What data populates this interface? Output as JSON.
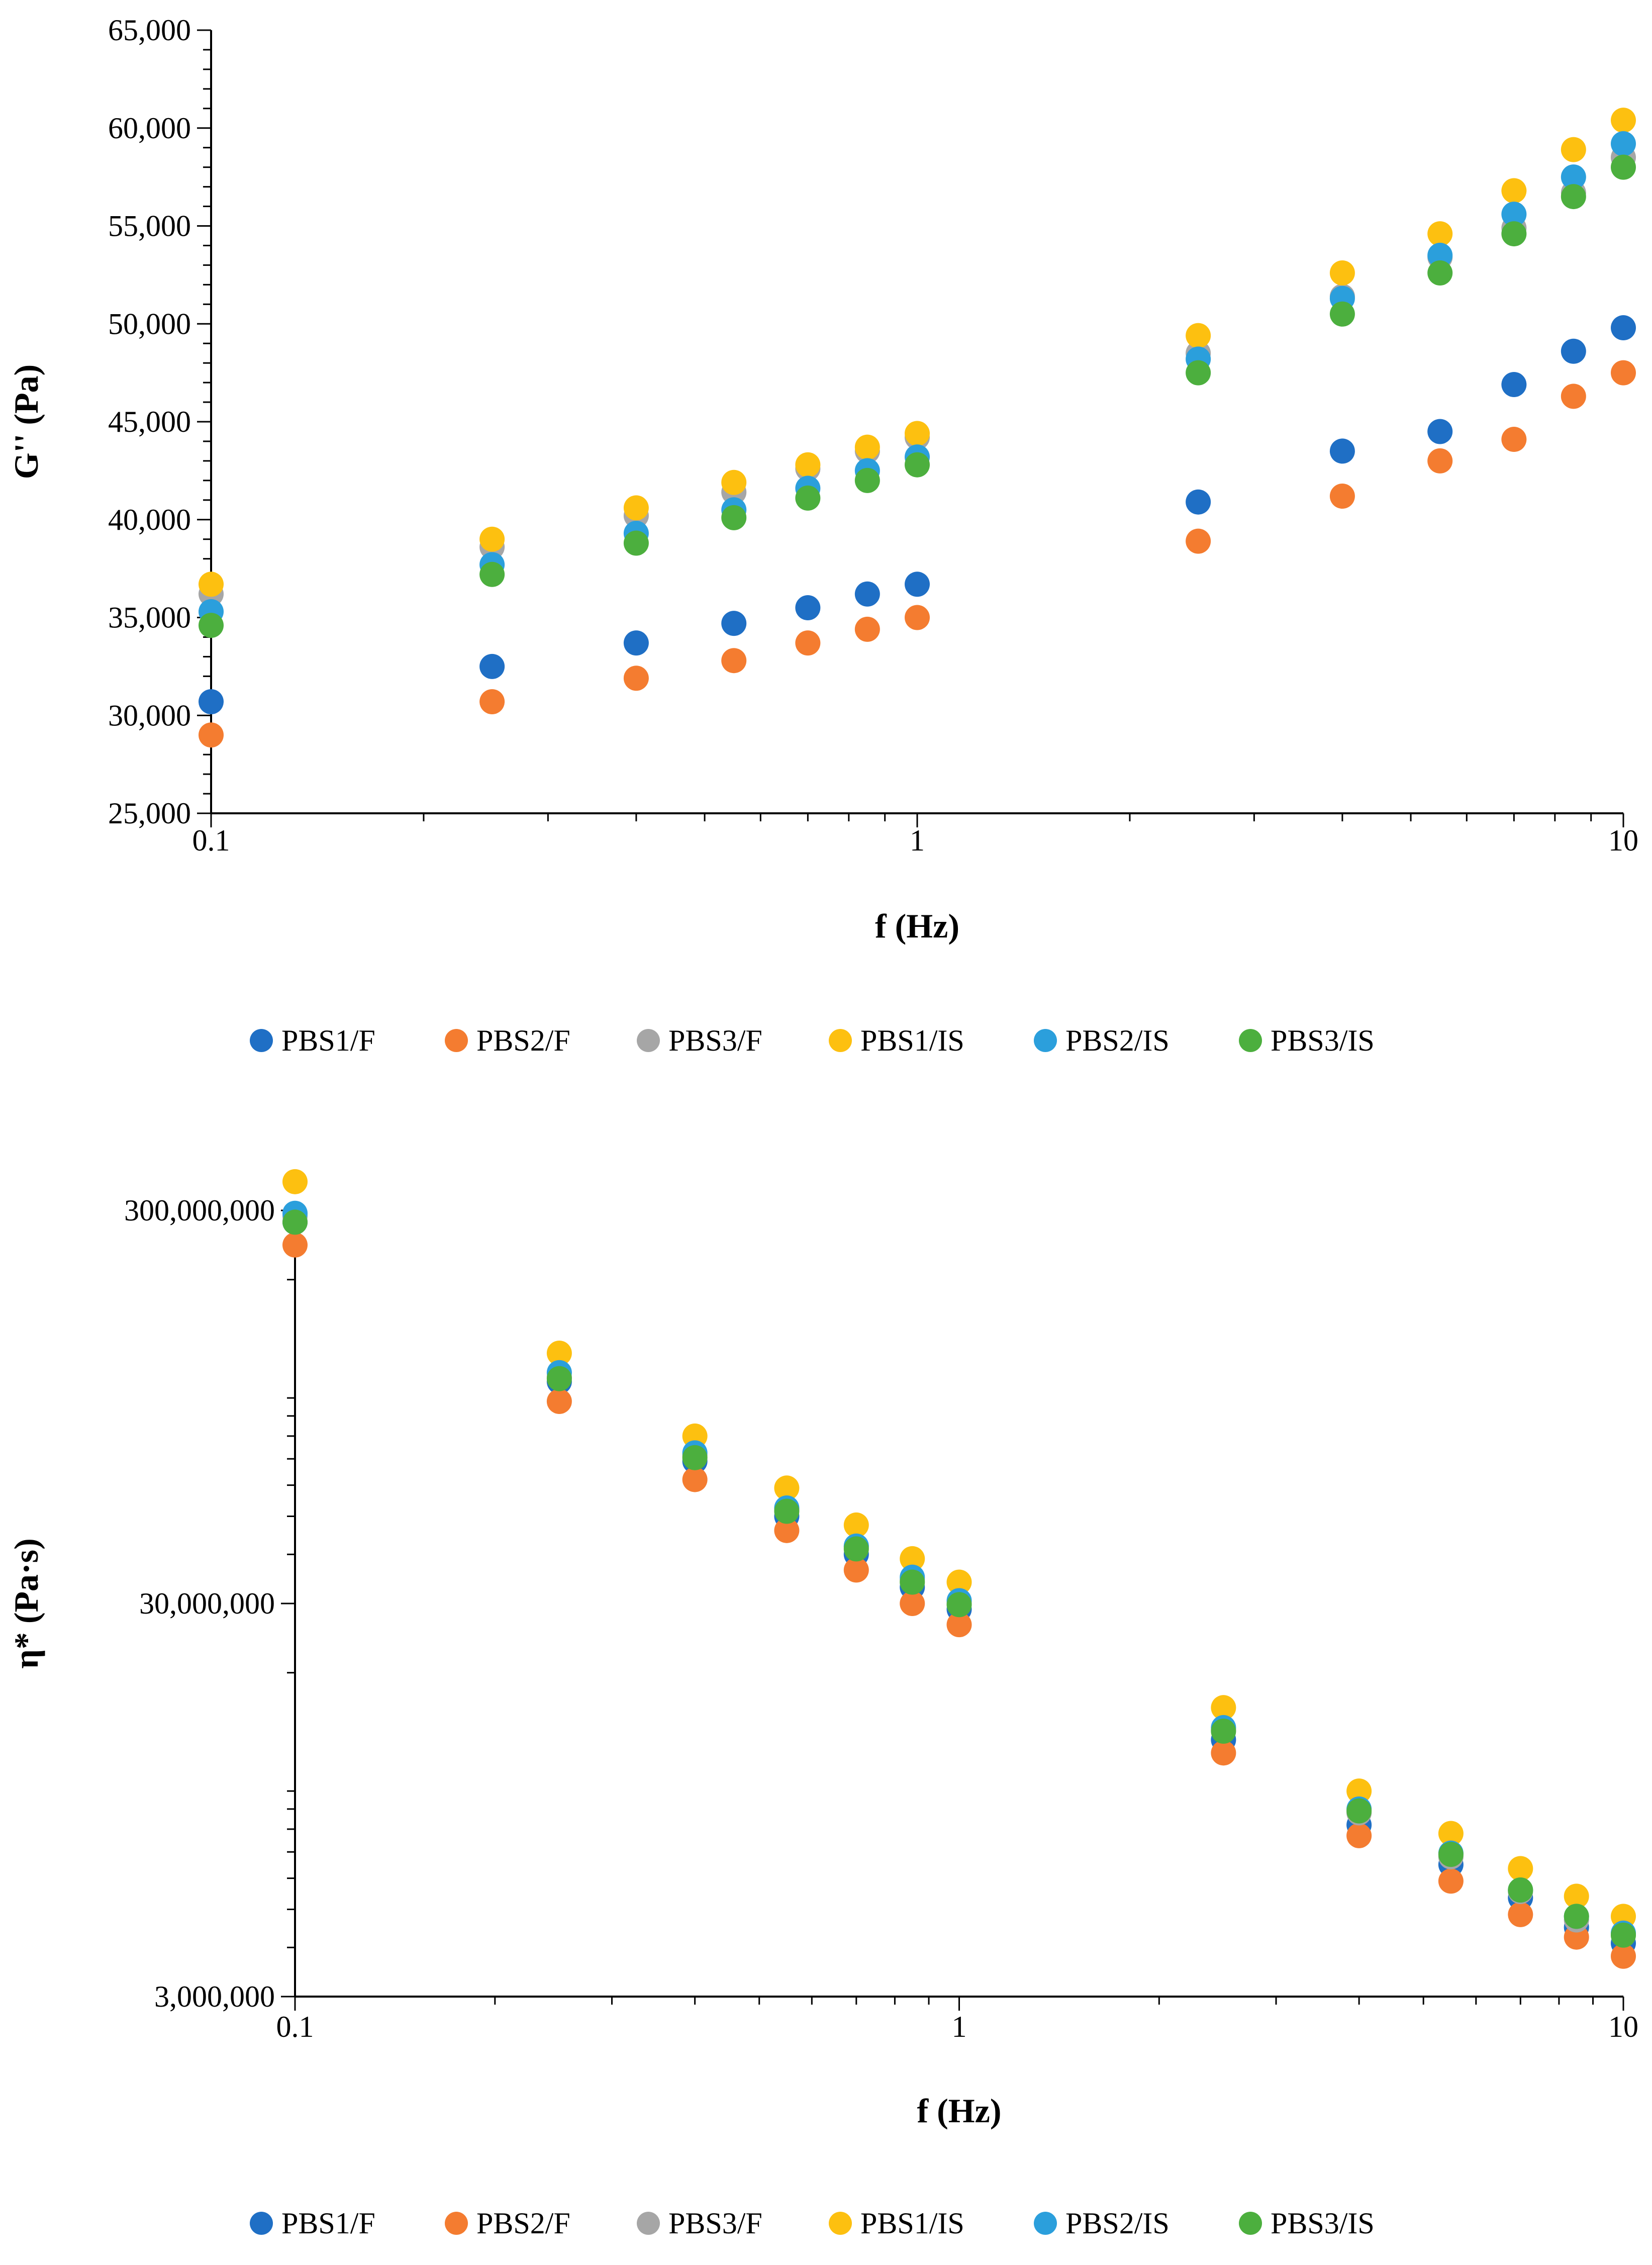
{
  "chart_data": [
    {
      "type": "scatter",
      "xscale": "log",
      "yscale": "linear",
      "xlabel": "f (Hz)",
      "ylabel": "G'' (Pa)",
      "xlim": [
        0.1,
        10
      ],
      "ylim": [
        25000,
        65000
      ],
      "xticks": [
        0.1,
        1,
        10
      ],
      "xtick_labels": [
        "0.1",
        "1",
        "10"
      ],
      "yticks": [
        25000,
        30000,
        35000,
        40000,
        45000,
        50000,
        55000,
        60000,
        65000
      ],
      "ytick_labels": [
        "25,000",
        "30,000",
        "35,000",
        "40,000",
        "45,000",
        "50,000",
        "55,000",
        "60,000",
        "65,000"
      ],
      "legend_position": "bottom",
      "grid": false,
      "x": [
        0.1,
        0.25,
        0.4,
        0.55,
        0.7,
        0.85,
        1,
        2.5,
        4,
        5.5,
        7,
        8.5,
        10
      ],
      "series": [
        {
          "name": "PBS1/F",
          "color": "#1f6fc5",
          "values": [
            30700,
            32500,
            33700,
            34700,
            35500,
            36200,
            36700,
            40900,
            43500,
            44500,
            46900,
            48600,
            49800
          ]
        },
        {
          "name": "PBS2/F",
          "color": "#f47c30",
          "values": [
            29000,
            30700,
            31900,
            32800,
            33700,
            34400,
            35000,
            38900,
            41200,
            43000,
            44100,
            46300,
            47500
          ]
        },
        {
          "name": "PBS3/F",
          "color": "#a6a6a6",
          "values": [
            36200,
            38600,
            40200,
            41400,
            42600,
            43500,
            44200,
            48500,
            51400,
            53400,
            54900,
            56700,
            58500
          ]
        },
        {
          "name": "PBS1/IS",
          "color": "#fdc010",
          "values": [
            36700,
            39000,
            40600,
            41900,
            42800,
            43700,
            44400,
            49400,
            52600,
            54600,
            56800,
            58900,
            60400
          ]
        },
        {
          "name": "PBS2/IS",
          "color": "#2b9fdc",
          "values": [
            35300,
            37700,
            39300,
            40500,
            41600,
            42500,
            43200,
            48200,
            51300,
            53500,
            55600,
            57500,
            59200
          ]
        },
        {
          "name": "PBS3/IS",
          "color": "#4caf3e",
          "values": [
            34600,
            37200,
            38800,
            40100,
            41100,
            42000,
            42800,
            47500,
            50500,
            52600,
            54600,
            56500,
            58000
          ]
        }
      ]
    },
    {
      "type": "scatter",
      "xscale": "log",
      "yscale": "log",
      "xlabel": "f (Hz)",
      "ylabel": "η* (Pa·s)",
      "xlim": [
        0.1,
        10
      ],
      "ylim": [
        3000000,
        300000000
      ],
      "xticks": [
        0.1,
        1,
        10
      ],
      "xtick_labels": [
        "0.1",
        "1",
        "10"
      ],
      "yticks": [
        3000000,
        30000000,
        300000000
      ],
      "ytick_labels": [
        "3,000,000",
        "30,000,000",
        "300,000,000"
      ],
      "legend_position": "bottom",
      "grid": false,
      "x": [
        0.1,
        0.25,
        0.4,
        0.55,
        0.7,
        0.85,
        1,
        2.5,
        4,
        5.5,
        7,
        8.5,
        10
      ],
      "series": [
        {
          "name": "PBS1/F",
          "color": "#1f6fc5",
          "values": [
            280000000,
            110000000,
            69000000,
            50000000,
            40000000,
            33000000,
            29000000,
            13500000,
            8200000,
            6500000,
            5350000,
            4500000,
            4100000
          ]
        },
        {
          "name": "PBS2/F",
          "color": "#f47c30",
          "values": [
            245000000,
            98000000,
            62000000,
            46000000,
            36500000,
            30000000,
            26500000,
            12500000,
            7700000,
            5900000,
            4850000,
            4250000,
            3800000
          ]
        },
        {
          "name": "PBS3/F",
          "color": "#a6a6a6",
          "values": [
            290000000,
            113000000,
            71500000,
            52000000,
            41800000,
            34500000,
            30000000,
            14300000,
            8800000,
            6800000,
            5550000,
            4700000,
            4300000
          ]
        },
        {
          "name": "PBS1/IS",
          "color": "#fdc010",
          "values": [
            355000000,
            130000000,
            80000000,
            59000000,
            47500000,
            39000000,
            34000000,
            16300000,
            10000000,
            7800000,
            6350000,
            5400000,
            4800000
          ]
        },
        {
          "name": "PBS2/IS",
          "color": "#2b9fdc",
          "values": [
            295000000,
            116000000,
            72500000,
            52500000,
            42000000,
            35000000,
            30500000,
            14500000,
            9000000,
            6950000,
            5600000,
            4800000,
            4350000
          ]
        },
        {
          "name": "PBS3/IS",
          "color": "#4caf3e",
          "values": [
            280000000,
            112000000,
            70500000,
            51500000,
            41300000,
            34000000,
            29800000,
            14200000,
            8900000,
            6900000,
            5600000,
            4800000,
            4300000
          ]
        }
      ]
    }
  ]
}
